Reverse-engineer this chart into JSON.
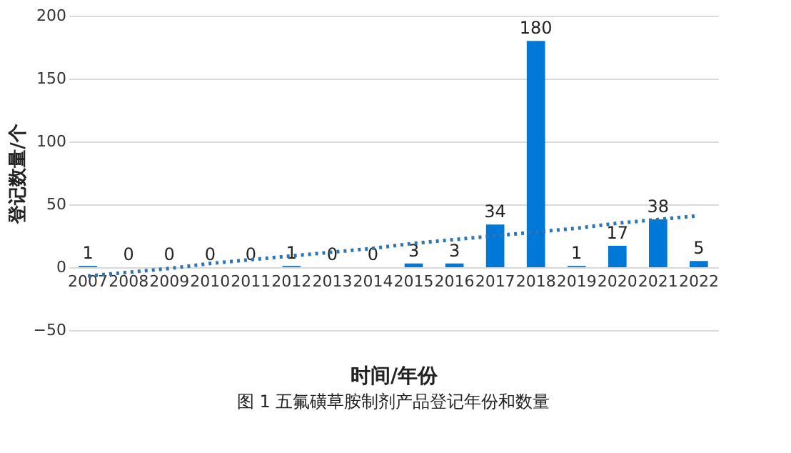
{
  "chart_data": {
    "type": "bar",
    "xlabel": "时间/年份",
    "ylabel": "登记数量/个",
    "annotations": [
      "图 1  五氟磺草胺制剂产品登记年份和数量"
    ],
    "categories": [
      "2007",
      "2008",
      "2009",
      "2010",
      "2011",
      "2012",
      "2013",
      "2014",
      "2015",
      "2016",
      "2017",
      "2018",
      "2019",
      "2020",
      "2021",
      "2022"
    ],
    "series": [
      {
        "color": "#0078d7",
        "values": [
          1,
          0,
          0,
          0,
          0,
          1,
          0,
          0,
          3,
          3,
          34,
          180,
          1,
          17,
          38,
          5
        ],
        "value_labels": [
          "1",
          "0",
          "0",
          "0",
          "0",
          "1",
          "0",
          "0",
          "3",
          "3",
          "34",
          "180",
          "1",
          "17",
          "38",
          "5"
        ]
      },
      {
        "type": "line",
        "color": "#2e75b6",
        "line_style": "dotted",
        "values": [
          -7,
          -4,
          -1,
          3,
          6,
          9,
          12,
          15,
          19,
          22,
          25,
          28,
          31,
          35,
          38,
          41
        ]
      }
    ],
    "ylim": [
      -50,
      200
    ],
    "yticks": [
      -50,
      0,
      50,
      100,
      150,
      200
    ],
    "grid": "y"
  }
}
